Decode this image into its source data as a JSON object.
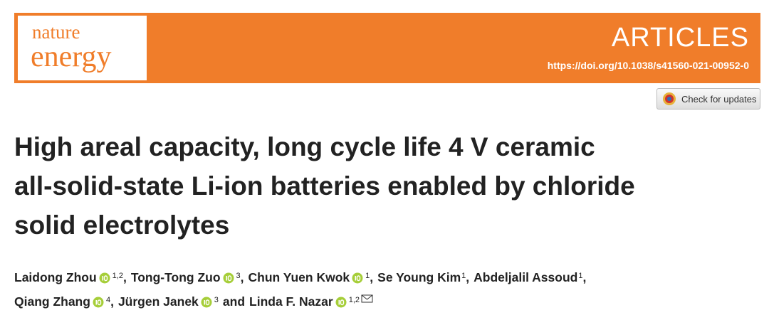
{
  "header": {
    "journal_top": "nature",
    "journal_bottom": "energy",
    "section": "ARTICLES",
    "doi": "https://doi.org/10.1038/s41560-021-00952-0",
    "button": "Check for updates"
  },
  "title_lines": [
    "High areal capacity, long cycle life 4 V ceramic",
    "all-solid-state Li-ion batteries enabled by chloride",
    "solid electrolytes"
  ],
  "author_lines": [
    [
      {
        "name": "Laidong Zhou",
        "orcid": true,
        "affiliations": "1,2",
        "separator": ","
      },
      {
        "name": "Tong-Tong Zuo",
        "orcid": true,
        "affiliations": "3",
        "separator": ","
      },
      {
        "name": "Chun Yuen Kwok",
        "orcid": true,
        "affiliations": "1",
        "separator": ","
      },
      {
        "name": "Se Young Kim",
        "orcid": false,
        "affiliations": "1",
        "separator": ","
      },
      {
        "name": "Abdeljalil Assoud",
        "orcid": false,
        "affiliations": "1",
        "separator": ","
      }
    ],
    [
      {
        "name": "Qiang Zhang",
        "orcid": true,
        "affiliations": "4",
        "separator": ","
      },
      {
        "name": "Jürgen Janek",
        "orcid": true,
        "affiliations": "3",
        "separator": "and"
      },
      {
        "name": "Linda F. Nazar",
        "orcid": true,
        "affiliations": "1,2",
        "corresponding": true
      }
    ]
  ]
}
